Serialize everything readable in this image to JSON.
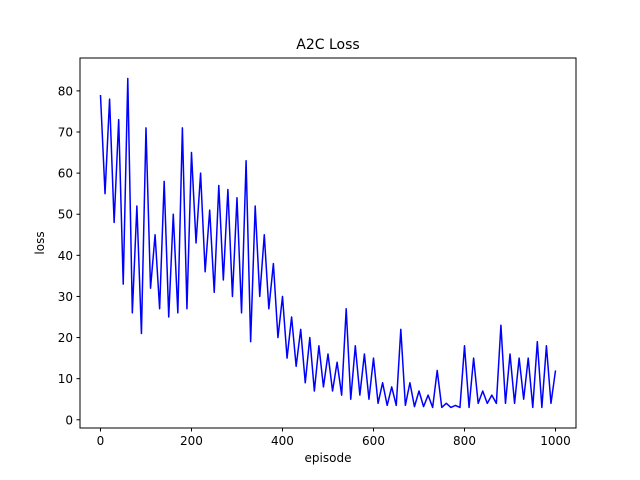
{
  "chart_data": {
    "type": "line",
    "title": "A2C Loss",
    "xlabel": "episode",
    "ylabel": "loss",
    "xlim": [
      -45,
      1045
    ],
    "ylim": [
      -2,
      88
    ],
    "xticks": [
      0,
      200,
      400,
      600,
      800,
      1000
    ],
    "yticks": [
      0,
      10,
      20,
      30,
      40,
      50,
      60,
      70,
      80
    ],
    "grid": false,
    "legend": "none",
    "series": [
      {
        "color": "#0000ff",
        "x": [
          0,
          10,
          20,
          30,
          40,
          50,
          60,
          70,
          80,
          90,
          100,
          110,
          120,
          130,
          140,
          150,
          160,
          170,
          180,
          190,
          200,
          210,
          220,
          230,
          240,
          250,
          260,
          270,
          280,
          290,
          300,
          310,
          320,
          330,
          340,
          350,
          360,
          370,
          380,
          390,
          400,
          410,
          420,
          430,
          440,
          450,
          460,
          470,
          480,
          490,
          500,
          510,
          520,
          530,
          540,
          550,
          560,
          570,
          580,
          590,
          600,
          610,
          620,
          630,
          640,
          650,
          660,
          670,
          680,
          690,
          700,
          710,
          720,
          730,
          740,
          750,
          760,
          770,
          780,
          790,
          800,
          810,
          820,
          830,
          840,
          850,
          860,
          870,
          880,
          890,
          900,
          910,
          920,
          930,
          940,
          950,
          960,
          970,
          980,
          990,
          1000
        ],
        "y": [
          79,
          55,
          78,
          48,
          73,
          33,
          83,
          26,
          52,
          21,
          71,
          32,
          45,
          27,
          58,
          25,
          50,
          26,
          71,
          27,
          65,
          43,
          60,
          36,
          51,
          31,
          57,
          34,
          56,
          30,
          54,
          26,
          63,
          19,
          52,
          30,
          45,
          27,
          38,
          20,
          30,
          15,
          25,
          13,
          22,
          9,
          20,
          7,
          18,
          8,
          16,
          7,
          14,
          6,
          27,
          5,
          18,
          6,
          16,
          5,
          15,
          4,
          9,
          3.5,
          8,
          3.5,
          22,
          3.5,
          9,
          3.2,
          7,
          3.2,
          6,
          3,
          12,
          3,
          4,
          3,
          3.5,
          3,
          18,
          3,
          15,
          4,
          7,
          4,
          6,
          4,
          23,
          4,
          16,
          4,
          15,
          5,
          15,
          3,
          19,
          3,
          18,
          4,
          12
        ]
      }
    ]
  }
}
